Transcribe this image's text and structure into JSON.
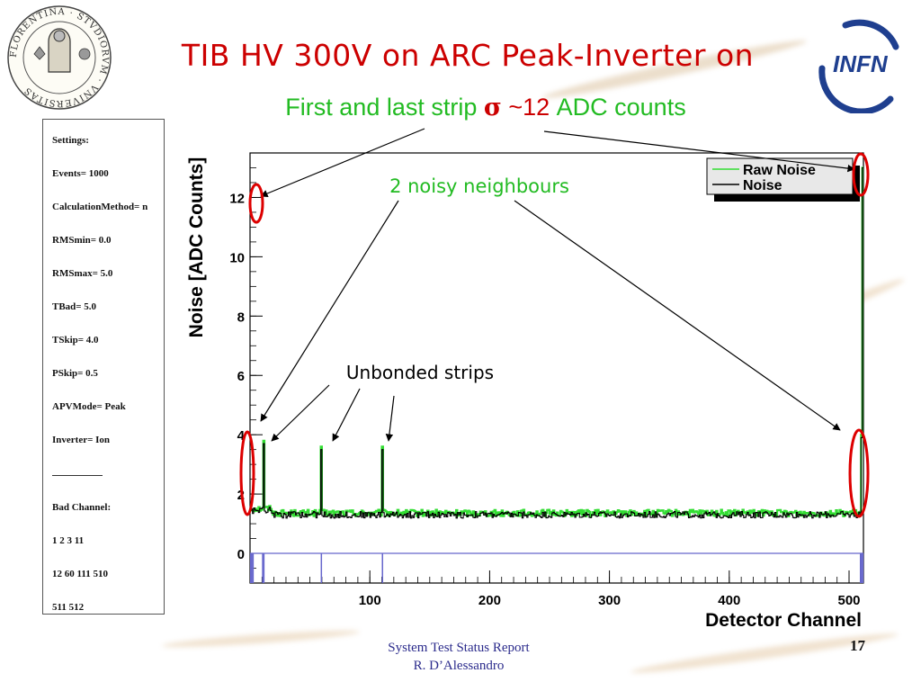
{
  "slide": {
    "title": "TIB HV 300V on ARC Peak-Inverter on",
    "subtitle_prefix": "First and last strip",
    "subtitle_symbol": "σ",
    "subtitle_value": "~12",
    "subtitle_suffix": "ADC counts",
    "annotation_noisy": "2 noisy neighbours",
    "annotation_unbonded": "Unbonded strips",
    "footer_line1": "System Test  Status Report",
    "footer_line2": "R. D’Alessandro",
    "page_number": "17",
    "seal_text": "FLORENTINA · STVDIORVM · VNIVERSITAS",
    "logo_text": "INFN"
  },
  "settings": {
    "header": "Settings:",
    "items": [
      "Events=  1000",
      "CalculationMethod=  n",
      "RMSmin=  0.0",
      "RMSmax=  5.0",
      "TBad=  5.0",
      "TSkip=  4.0",
      "PSkip=  0.5",
      "APVMode=  Peak",
      "Inverter=  Ion"
    ],
    "bad_header": "Bad Channel:",
    "bad_lines": [
      "1  2  3  11",
      "12  60  111  510",
      "511  512"
    ]
  },
  "colors": {
    "title": "#cc0000",
    "subtitle": "#22bb22",
    "raw_noise": "#33dd33",
    "noise": "#000000",
    "bad_marker": "#6666cc",
    "highlight": "#dd0000"
  },
  "chart_data": {
    "type": "line",
    "xlabel": "Detector Channel",
    "ylabel": "Noise [ADC Counts]",
    "xlim": [
      0,
      512
    ],
    "ylim": [
      -1.0,
      13.5
    ],
    "x_ticks": [
      100,
      200,
      300,
      400,
      500
    ],
    "y_ticks": [
      0,
      2,
      4,
      6,
      8,
      10,
      12
    ],
    "legend": {
      "placement": "top-right",
      "entries": [
        "Raw Noise",
        "Noise"
      ]
    },
    "baseline": {
      "x_range": [
        1,
        512
      ],
      "level_approx": 1.3
    },
    "series": [
      {
        "name": "Raw Noise",
        "spikes": [
          [
            12,
            3.8
          ],
          [
            60,
            3.6
          ],
          [
            111,
            3.6
          ],
          [
            511,
            4.0
          ],
          [
            512,
            13.0
          ]
        ]
      },
      {
        "name": "Noise",
        "spikes": [
          [
            12,
            3.7
          ],
          [
            60,
            3.5
          ],
          [
            111,
            3.5
          ],
          [
            511,
            3.9
          ],
          [
            512,
            13.0
          ]
        ]
      }
    ],
    "bad_channels": [
      1,
      2,
      3,
      11,
      12,
      60,
      111,
      510,
      511,
      512
    ]
  }
}
